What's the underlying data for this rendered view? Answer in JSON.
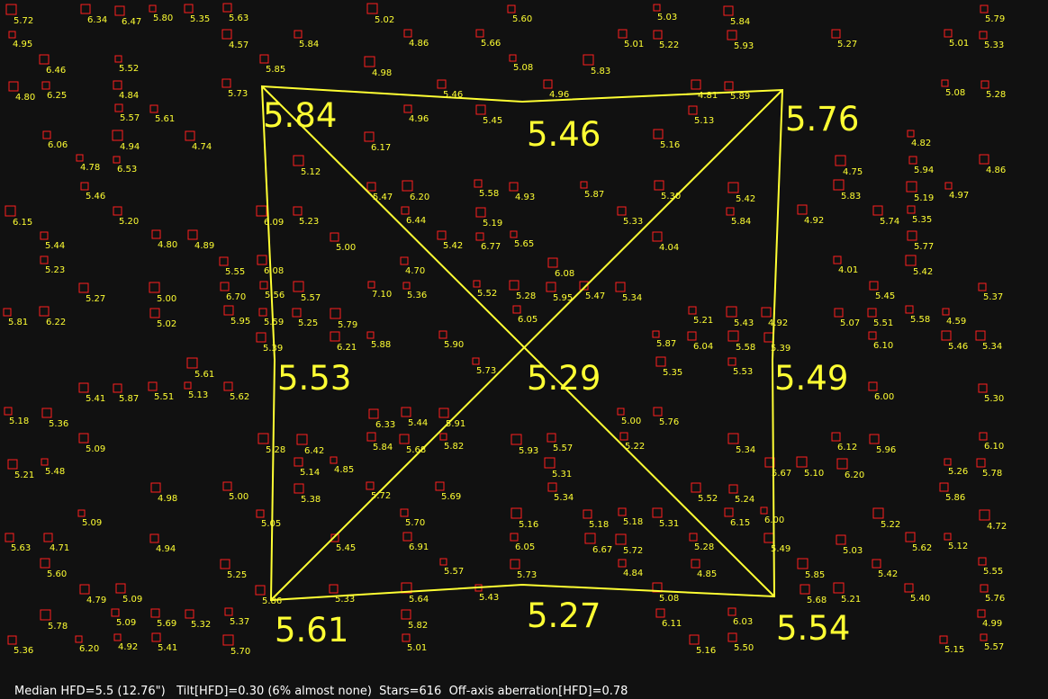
{
  "colors": {
    "background": "#111111",
    "star_box": "#ff2020",
    "star_label": "#ffff33",
    "grid": "#ffff33",
    "status_text": "#ffffff"
  },
  "regions": {
    "top_left": "5.84",
    "top_center": "5.46",
    "top_right": "5.76",
    "middle_left": "5.53",
    "center": "5.29",
    "middle_right": "5.49",
    "bottom_left": "5.61",
    "bottom_center": "5.27",
    "bottom_right": "5.54"
  },
  "status": {
    "median_hfd": "Median HFD=5.5 (12.76\")",
    "tilt": "Tilt[HFD]=0.30 (6% almost none)",
    "stars": "Stars=616",
    "aberration": "Off-axis aberration[HFD]=0.78"
  },
  "star_hfd_values": [
    "6.44",
    "6.53",
    "7.10",
    "5.82",
    "5.51",
    "5.65",
    "6.12",
    "5.46",
    "4.99",
    "5.58",
    "5.78",
    "6.00",
    "5.57",
    "6.34",
    "5.08",
    "5.31",
    "5.84",
    "5.95",
    "5.86",
    "6.03",
    "5.38",
    "6.17",
    "5.66",
    "6.10",
    "5.73",
    "4.89",
    "5.62",
    "5.28",
    "5.60",
    "4.98",
    "5.34",
    "5.25",
    "4.59",
    "5.68",
    "5.74",
    "5.18",
    "5.53",
    "5.28",
    "5.47",
    "5.95",
    "6.77",
    "6.25",
    "5.77",
    "6.06",
    "5.69",
    "5.36",
    "5.52",
    "6.09",
    "5.37",
    "6.70",
    "4.84",
    "4.92",
    "5.86",
    "5.96",
    "5.84",
    "6.15",
    "6.33",
    "5.80",
    "5.94",
    "5.22",
    "5.27",
    "5.00",
    "5.63",
    "5.41",
    "5.89",
    "5.09",
    "5.45",
    "5.23",
    "5.03",
    "5.18",
    "5.42",
    "5.33",
    "5.12",
    "5.25",
    "6.10",
    "5.01",
    "5.50",
    "4.96",
    "5.27",
    "5.30",
    "5.09",
    "5.52",
    "4.71",
    "5.83",
    "5.01",
    "5.48",
    "5.21",
    "5.19",
    "4.75",
    "5.33",
    "5.20",
    "5.13",
    "6.08",
    "5.23",
    "5.73",
    "5.93",
    "5.43",
    "5.82",
    "5.72",
    "5.78",
    "5.91",
    "5.85",
    "5.76",
    "5.45",
    "5.31",
    "4.78",
    "5.57",
    "5.14",
    "5.32",
    "5.39",
    "4.01",
    "5.37",
    "5.02",
    "5.08",
    "4.84",
    "4.85",
    "4.74",
    "5.33",
    "5.79",
    "5.61",
    "5.16",
    "5.43",
    "5.67",
    "5.55",
    "5.85",
    "5.46",
    "5.42",
    "5.61",
    "4.86",
    "5.07",
    "4.94",
    "5.47",
    "4.80",
    "5.05",
    "4.95",
    "4.72",
    "5.00",
    "5.34",
    "5.69",
    "5.24",
    "4.82",
    "6.08",
    "5.42",
    "5.22",
    "5.13",
    "5.57",
    "6.20",
    "5.87",
    "5.93",
    "5.19",
    "4.70",
    "6.00",
    "6.22",
    "6.05",
    "5.42",
    "6.67",
    "5.62",
    "5.40",
    "5.58",
    "5.68",
    "5.35",
    "5.36",
    "5.55",
    "5.49",
    "5.35",
    "5.51",
    "4.79",
    "4.86",
    "4.57",
    "5.09",
    "5.70",
    "5.28",
    "5.39",
    "5.44",
    "5.02",
    "5.21",
    "4.80",
    "4.04",
    "5.36",
    "5.45",
    "6.15",
    "5.03",
    "5.72",
    "6.91",
    "6.42",
    "6.21",
    "5.60",
    "5.59",
    "5.84",
    "4.81",
    "5.79",
    "5.00",
    "5.22",
    "5.64",
    "5.16",
    "4.94",
    "4.97",
    "5.72",
    "5.35",
    "5.10",
    "4.92",
    "5.08",
    "5.34",
    "5.57",
    "5.83",
    "5.57",
    "6.04",
    "5.76",
    "5.70",
    "5.63",
    "5.12",
    "5.30",
    "5.87",
    "5.56",
    "5.41",
    "4.98",
    "5.90",
    "5.21",
    "5.88",
    "4.93",
    "5.84",
    "6.20",
    "5.81",
    "6.46",
    "6.05",
    "5.58",
    "5.26",
    "5.34",
    "4.85",
    "5.16",
    "5.00",
    "4.96",
    "5.15",
    "6.20",
    "5.52",
    "5.87",
    "5.46",
    "5.18",
    "5.44",
    "5.01",
    "5.28",
    "5.09",
    "4.92",
    "5.73",
    "6.47",
    "6.11"
  ]
}
